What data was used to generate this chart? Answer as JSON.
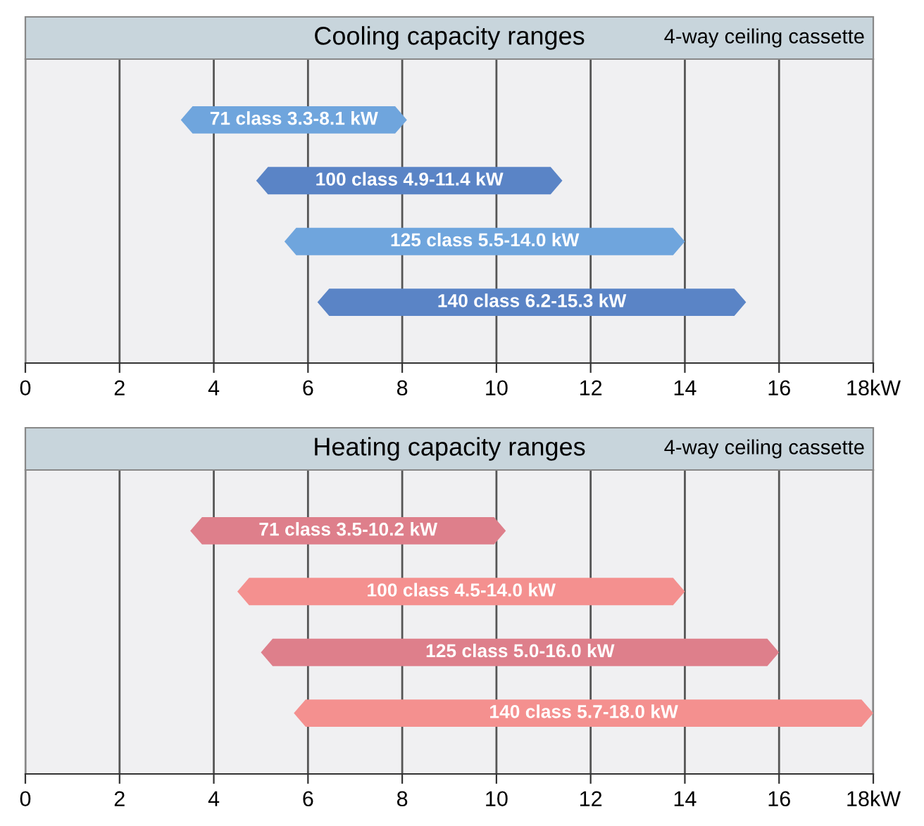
{
  "chart_data": [
    {
      "type": "bar",
      "orientation": "horizontal",
      "title": "Cooling capacity ranges",
      "subtitle": "4-way ceiling cassette",
      "categories": [
        null,
        null,
        null,
        null
      ],
      "base": [
        3.3,
        4.9,
        5.5,
        6.2
      ],
      "values": [
        4.8,
        6.5,
        8.5,
        9.1
      ],
      "colors": [
        "#6fa5dd",
        "#5a84c6",
        "#6fa5dd",
        "#5a84c6"
      ],
      "annotations": [
        "71 class 3.3-8.1 kW",
        "100 class 4.9-11.4 kW",
        "125 class 5.5-14.0 kW",
        "140 class 6.2-15.3 kW"
      ],
      "xlim": [
        0,
        18
      ],
      "xticks": [
        0,
        2,
        4,
        6,
        8,
        10,
        12,
        14,
        16,
        {
          "value": 18,
          "label": "18kW"
        }
      ],
      "grid": "x"
    },
    {
      "type": "bar",
      "orientation": "horizontal",
      "title": "Heating capacity ranges",
      "subtitle": "4-way ceiling cassette",
      "categories": [
        null,
        null,
        null,
        null
      ],
      "base": [
        3.5,
        4.5,
        5.0,
        5.7
      ],
      "values": [
        6.7,
        9.5,
        11.0,
        12.3
      ],
      "colors": [
        "#de7f8b",
        "#f4908f",
        "#de7f8b",
        "#f4908f"
      ],
      "annotations": [
        "71 class 3.5-10.2 kW",
        "100 class 4.5-14.0 kW",
        "125 class 5.0-16.0 kW",
        "140 class 5.7-18.0 kW"
      ],
      "xlim": [
        0,
        18
      ],
      "xticks": [
        0,
        2,
        4,
        6,
        8,
        10,
        12,
        14,
        16,
        {
          "value": 18,
          "label": "18kW"
        }
      ],
      "grid": "x"
    }
  ]
}
